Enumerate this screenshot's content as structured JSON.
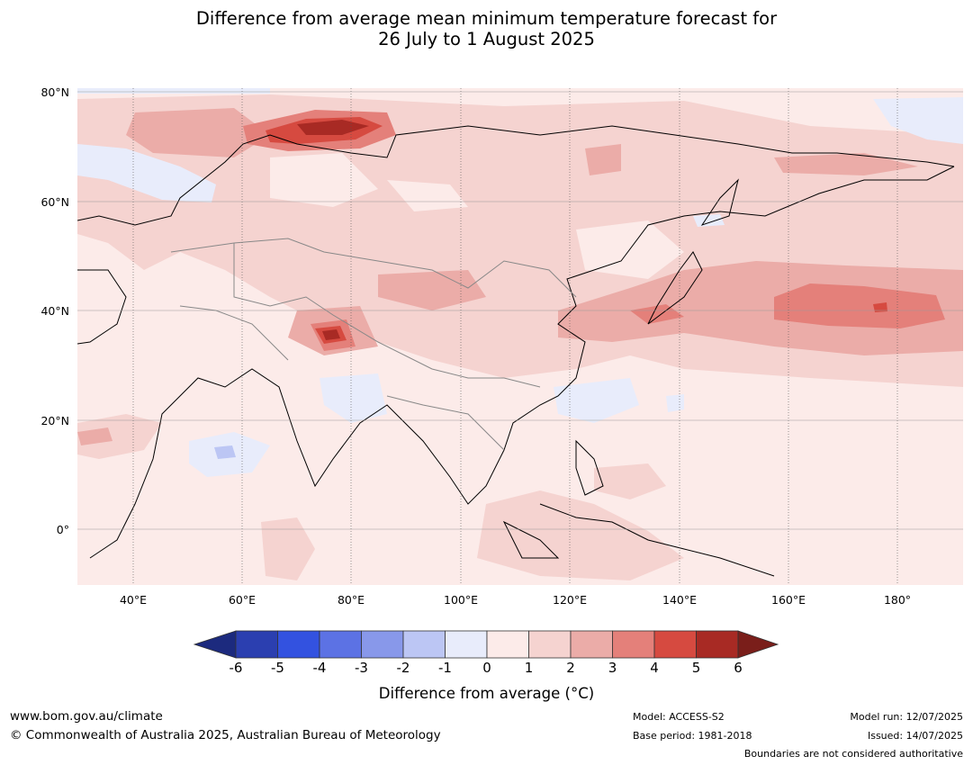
{
  "title": {
    "line1": "Difference from average mean minimum temperature forecast for",
    "line2": "26 July to 1 August 2025"
  },
  "map": {
    "lat_labels": [
      "80°N",
      "60°N",
      "40°N",
      "20°N",
      "0°"
    ],
    "lon_labels": [
      "40°E",
      "60°E",
      "80°E",
      "100°E",
      "120°E",
      "140°E",
      "160°E",
      "180°"
    ],
    "base_color": "#fcebe9"
  },
  "colorbar": {
    "title": "Difference from average (°C)",
    "ticks": [
      "-6",
      "-5",
      "-4",
      "-3",
      "-2",
      "-1",
      "0",
      "1",
      "2",
      "3",
      "4",
      "5",
      "6"
    ],
    "colors": [
      "#1c2a7e",
      "#2b3fb0",
      "#3352e0",
      "#5c72e4",
      "#8898ea",
      "#bcc6f4",
      "#e8ecfb",
      "#fcebe9",
      "#f5d3d0",
      "#ebaca8",
      "#e4807a",
      "#d64a40",
      "#a82a24",
      "#7a1e1a"
    ]
  },
  "footer": {
    "website": "www.bom.gov.au/climate",
    "copyright": "© Commonwealth of Australia 2025, Australian Bureau of Meteorology",
    "model": "Model: ACCESS-S2",
    "base_period": "Base period: 1981-2018",
    "model_run": "Model run: 12/07/2025",
    "issued": "Issued: 14/07/2025",
    "disclaimer": "Boundaries are not considered authoritative"
  }
}
